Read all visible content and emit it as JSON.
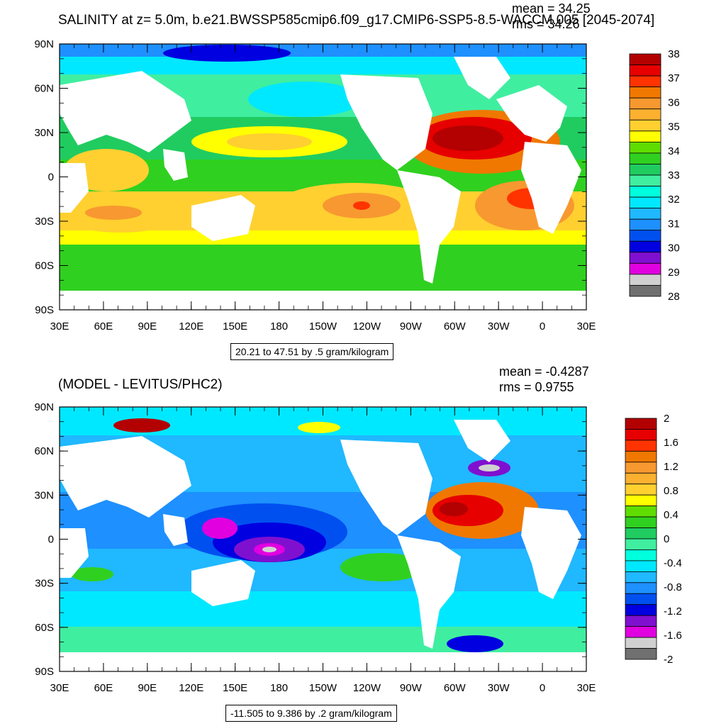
{
  "maps": [
    {
      "title": "SALINITY at z=   5.0m, b.e21.BWSSP585cmip6.f09_g17.CMIP6-SSP5-8.5-WACCM.005 [2045-2074]",
      "mean": "mean = 34.25",
      "rms": "rms = 34.26",
      "range_label": "20.21 to 47.51 by .5 gram/kilogram",
      "colorbar_labels": [
        "38",
        "37",
        "36",
        "35",
        "34",
        "33",
        "32",
        "31",
        "30",
        "29",
        "28"
      ],
      "colorbar_colors": [
        "#b30000",
        "#e60000",
        "#ff3300",
        "#f07800",
        "#f89830",
        "#fbb030",
        "#ffd030",
        "#ffff00",
        "#60dd00",
        "#30d020",
        "#20cc60",
        "#40eea0",
        "#00ffdd",
        "#00e8ff",
        "#20b8ff",
        "#1e90ff",
        "#0050f0",
        "#0000e0",
        "#8010d0",
        "#e000e0",
        "#d0d0d0",
        "#707070"
      ]
    },
    {
      "title": "(MODEL - LEVITUS/PHC2)",
      "mean": "mean = -0.4287",
      "rms": "rms = 0.9755",
      "range_label": "-11.505 to 9.386 by .2 gram/kilogram",
      "colorbar_labels": [
        "2",
        "1.6",
        "1.2",
        "0.8",
        "0.4",
        "0",
        "-0.4",
        "-0.8",
        "-1.2",
        "-1.6",
        "-2"
      ],
      "colorbar_colors": [
        "#b30000",
        "#e60000",
        "#ff3300",
        "#f07800",
        "#f89830",
        "#fbb030",
        "#ffd030",
        "#ffff00",
        "#60dd00",
        "#30d020",
        "#20cc60",
        "#40eea0",
        "#00ffdd",
        "#00e8ff",
        "#20b8ff",
        "#1e90ff",
        "#0050f0",
        "#0000e0",
        "#8010d0",
        "#e000e0",
        "#d0d0d0",
        "#707070"
      ]
    }
  ],
  "axes": {
    "lat_labels": [
      "90N",
      "60N",
      "30N",
      "0",
      "30S",
      "60S",
      "90S"
    ],
    "lon_labels": [
      "30E",
      "60E",
      "90E",
      "120E",
      "150E",
      "180",
      "150W",
      "120W",
      "90W",
      "60W",
      "30W",
      "0",
      "30E"
    ]
  },
  "colors": {
    "land": "#ffffff",
    "frame": "#000000"
  }
}
